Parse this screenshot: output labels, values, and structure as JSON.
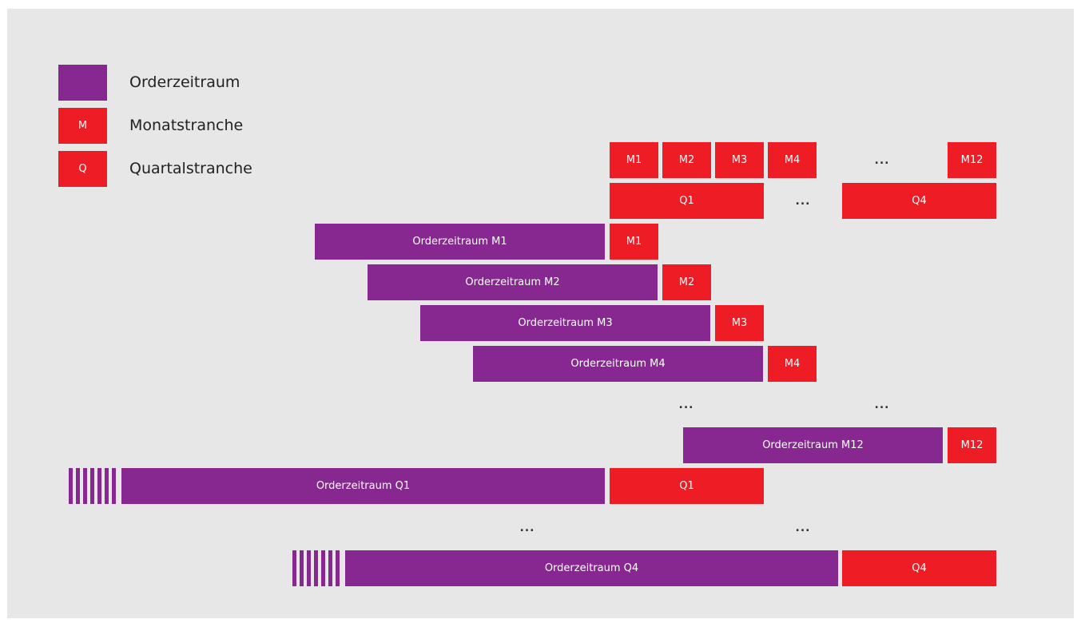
{
  "colors": {
    "order_period": "#872891",
    "tranche": "#ee1c25",
    "background": "#e7e7e8"
  },
  "legend": {
    "order_label": "Orderzeitraum",
    "month_symbol": "M",
    "month_label": "Monatstranche",
    "quarter_symbol": "Q",
    "quarter_label": "Quartalstranche"
  },
  "header_months": [
    "M1",
    "M2",
    "M3",
    "M4",
    "...",
    "M12"
  ],
  "header_quarters": {
    "q1": "Q1",
    "ellipsis": "...",
    "q4": "Q4"
  },
  "monthly_rows": [
    {
      "period": "Orderzeitraum M1",
      "tranche": "M1"
    },
    {
      "period": "Orderzeitraum M2",
      "tranche": "M2"
    },
    {
      "period": "Orderzeitraum M3",
      "tranche": "M3"
    },
    {
      "period": "Orderzeitraum M4",
      "tranche": "M4"
    },
    {
      "period": "Orderzeitraum M12",
      "tranche": "M12"
    }
  ],
  "quarter_rows": [
    {
      "period": "Orderzeitraum Q1",
      "tranche": "Q1"
    },
    {
      "period": "Orderzeitraum Q4",
      "tranche": "Q4"
    }
  ],
  "ellipsis": "..."
}
